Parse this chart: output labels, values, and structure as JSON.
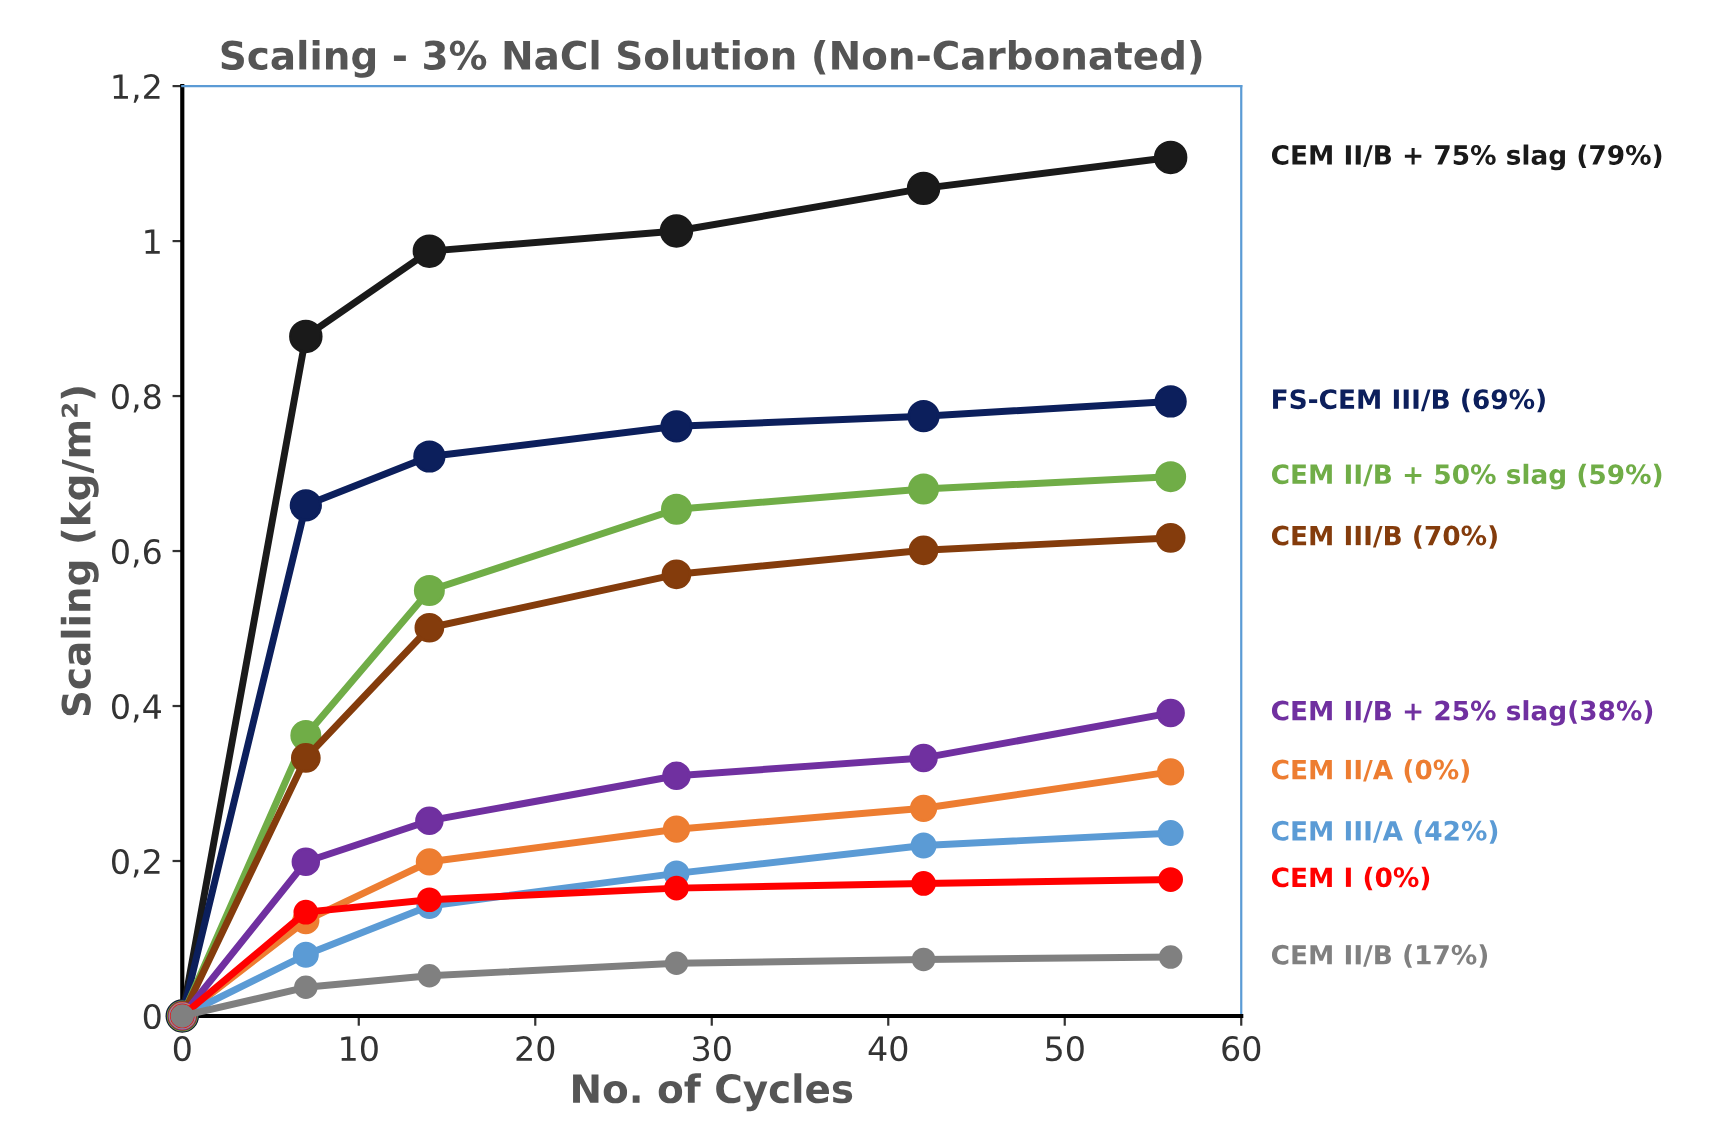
{
  "chart_data": {
    "type": "line",
    "title": "Scaling - 3% NaCl Solution (Non-Carbonated)",
    "xlabel": "No. of Cycles",
    "ylabel": "Scaling (kg/m²)",
    "x": [
      0,
      7,
      14,
      28,
      42,
      56
    ],
    "series": [
      {
        "name": "CEM II/B + 75% slag (79%)",
        "color": "#1a1a1a",
        "values": [
          0,
          0.877,
          0.987,
          1.013,
          1.068,
          1.108
        ]
      },
      {
        "name": "FS-CEM III/B (69%)",
        "color": "#0c1f5c",
        "values": [
          0,
          0.659,
          0.722,
          0.761,
          0.774,
          0.793
        ]
      },
      {
        "name": "CEM II/B + 50% slag (59%)",
        "color": "#70ad47",
        "values": [
          0,
          0.362,
          0.549,
          0.654,
          0.68,
          0.696
        ]
      },
      {
        "name": "CEM III/B (70%)",
        "color": "#843c0c",
        "values": [
          0,
          0.333,
          0.501,
          0.57,
          0.601,
          0.617
        ]
      },
      {
        "name": "CEM II/B + 25% slag(38%)",
        "color": "#7030a0",
        "values": [
          0,
          0.199,
          0.252,
          0.31,
          0.333,
          0.391
        ]
      },
      {
        "name": "CEM II/A (0%)",
        "color": "#ed7d31",
        "values": [
          0,
          0.123,
          0.199,
          0.241,
          0.268,
          0.315
        ]
      },
      {
        "name": "CEM III/A (42%)",
        "color": "#5b9bd5",
        "values": [
          0,
          0.079,
          0.142,
          0.184,
          0.22,
          0.236
        ]
      },
      {
        "name": "CEM I (0%)",
        "color": "#ff0000",
        "values": [
          0,
          0.134,
          0.15,
          0.165,
          0.171,
          0.176
        ]
      },
      {
        "name": "CEM II/B (17%)",
        "color": "#808080",
        "values": [
          0,
          0.037,
          0.052,
          0.068,
          0.073,
          0.076
        ]
      }
    ],
    "xlim": [
      0,
      60
    ],
    "xticks": [
      0,
      10,
      20,
      30,
      40,
      50,
      60
    ],
    "ylim": [
      0,
      1.2
    ],
    "yticks": [
      0,
      {
        "value": 0.2,
        "label": "0,2"
      },
      {
        "value": 0.4,
        "label": "0,4"
      },
      {
        "value": 0.6,
        "label": "0,6"
      },
      {
        "value": 0.8,
        "label": "0,8"
      },
      1,
      {
        "value": 1.2,
        "label": "1,2"
      }
    ],
    "marker": "circle",
    "line_style": "solid",
    "grid": false,
    "legend": "right"
  }
}
